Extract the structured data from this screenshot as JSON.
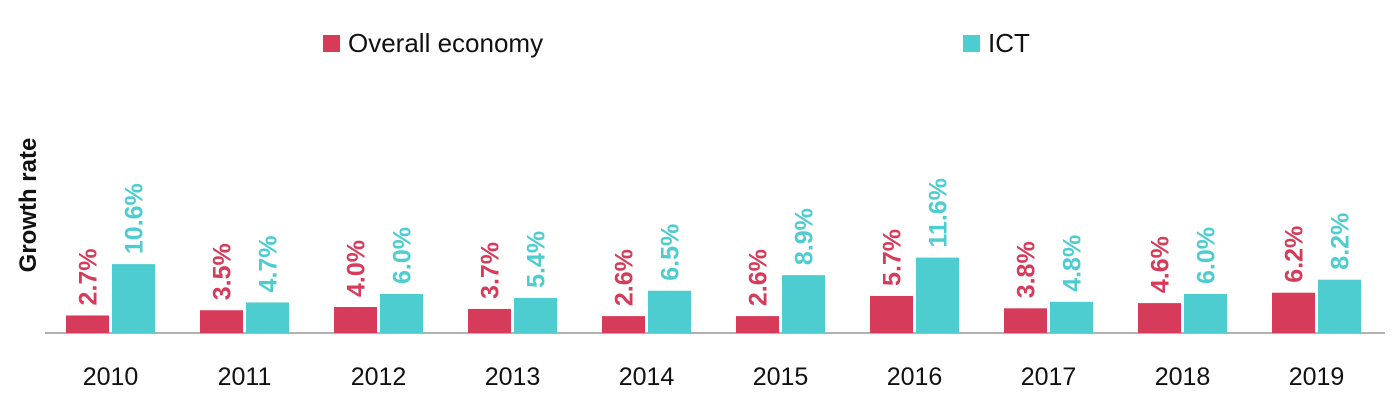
{
  "chart_data": {
    "type": "bar",
    "title": "",
    "xlabel": "",
    "ylabel": "Growth rate",
    "categories": [
      "2010",
      "2011",
      "2012",
      "2013",
      "2014",
      "2015",
      "2016",
      "2017",
      "2018",
      "2019"
    ],
    "series": [
      {
        "name": "Overall economy",
        "color": "#d63c5a",
        "values": [
          2.7,
          3.5,
          4.0,
          3.7,
          2.6,
          2.6,
          5.7,
          3.8,
          4.6,
          6.2
        ],
        "labels": [
          "2.7%",
          "3.5%",
          "4.0%",
          "3.7%",
          "2.6%",
          "2.6%",
          "5.7%",
          "3.8%",
          "4.6%",
          "6.2%"
        ]
      },
      {
        "name": "ICT",
        "color": "#4ecdd0",
        "values": [
          10.6,
          4.7,
          6.0,
          5.4,
          6.5,
          8.9,
          11.6,
          4.8,
          6.0,
          8.2
        ],
        "labels": [
          "10.6%",
          "4.7%",
          "6.0%",
          "5.4%",
          "6.5%",
          "8.9%",
          "11.6%",
          "4.8%",
          "6.0%",
          "8.2%"
        ]
      }
    ],
    "ylim": [
      0,
      12
    ],
    "grid": false,
    "legend": "top"
  }
}
